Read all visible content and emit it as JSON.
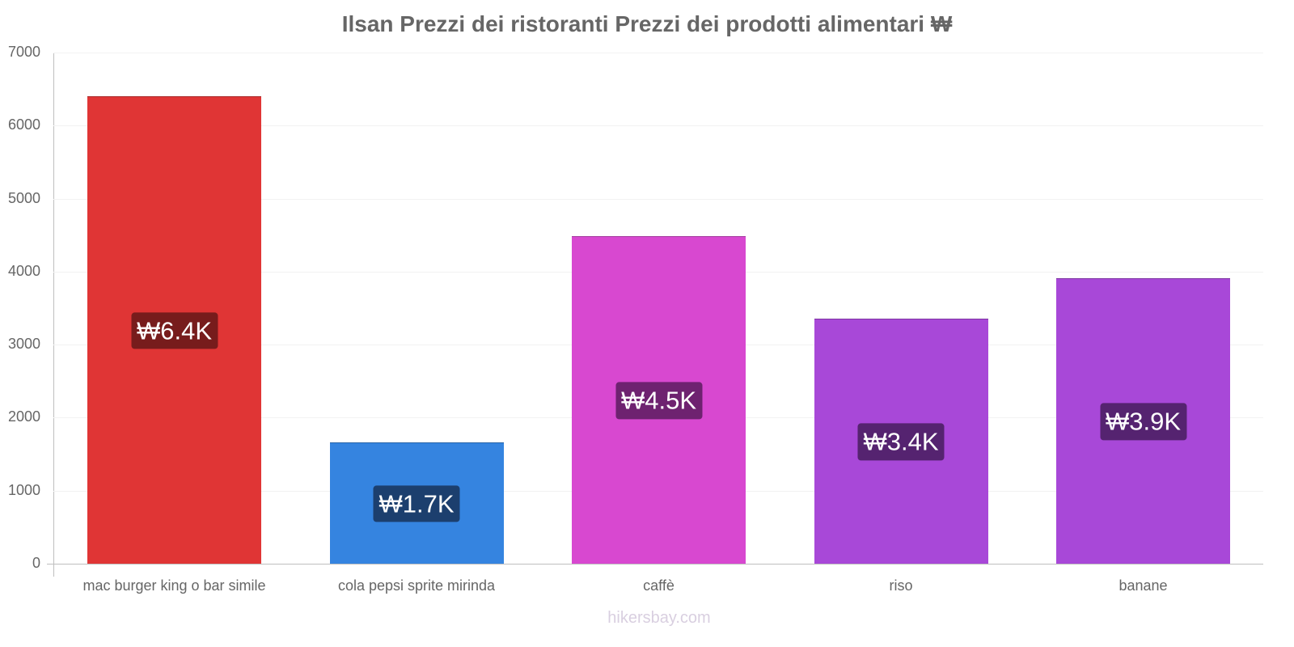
{
  "chart_data": {
    "type": "bar",
    "title": "Ilsan Prezzi dei ristoranti Prezzi dei prodotti alimentari ₩",
    "xlabel": "",
    "ylabel": "",
    "ylim": [
      0,
      7000
    ],
    "y_ticks": [
      "0",
      "1000",
      "2000",
      "3000",
      "4000",
      "5000",
      "6000",
      "7000"
    ],
    "categories": [
      "mac burger king o bar simile",
      "cola pepsi sprite mirinda",
      "caffè",
      "riso",
      "banane"
    ],
    "values": [
      6400,
      1660,
      4490,
      3360,
      3910
    ],
    "data_labels": [
      "₩6.4K",
      "₩1.7K",
      "₩4.5K",
      "₩3.4K",
      "₩3.9K"
    ],
    "colors": [
      "#e03535",
      "#3584e0",
      "#d848d0",
      "#a848d8",
      "#a848d8"
    ],
    "label_bg_colors": [
      "#771c1c",
      "#1c3f6e",
      "#6e2270",
      "#552370",
      "#552370"
    ],
    "grid": true,
    "legend": "none"
  },
  "watermark": "hikersbay.com"
}
